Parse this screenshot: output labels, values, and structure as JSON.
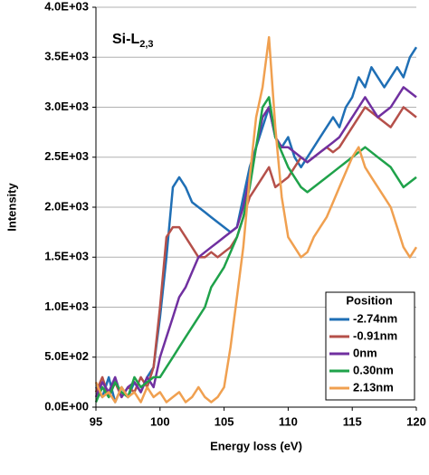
{
  "chart_data": {
    "type": "line",
    "title": "Si-L",
    "title_subscript": "2,3",
    "x_label": "Energy loss (eV)",
    "y_label": "Intensity",
    "x": [
      95,
      95.5,
      96,
      96.5,
      97,
      97.5,
      98,
      98.5,
      99,
      99.5,
      100,
      100.5,
      101,
      101.5,
      102,
      102.5,
      103,
      103.5,
      104,
      104.5,
      105,
      105.5,
      106,
      106.5,
      107,
      107.5,
      108,
      108.5,
      109,
      109.5,
      110,
      110.5,
      111,
      111.5,
      112,
      112.5,
      113,
      113.5,
      114,
      114.5,
      115,
      115.5,
      116,
      116.5,
      117,
      117.5,
      118,
      118.5,
      119,
      119.5,
      120
    ],
    "series": [
      {
        "name": "-2.74nm",
        "color": "#1f6fb5",
        "values": [
          200,
          100,
          300,
          50,
          200,
          100,
          250,
          150,
          300,
          400,
          900,
          1500,
          2200,
          2300,
          2200,
          2050,
          2000,
          1950,
          1900,
          1850,
          1800,
          1750,
          1800,
          2100,
          2400,
          2600,
          2800,
          3000,
          2700,
          2600,
          2700,
          2500,
          2400,
          2500,
          2600,
          2700,
          2800,
          2900,
          2800,
          3000,
          3100,
          3300,
          3200,
          3400,
          3300,
          3200,
          3300,
          3400,
          3300,
          3500,
          3600
        ]
      },
      {
        "name": "-0.91nm",
        "color": "#b5504a",
        "values": [
          150,
          300,
          100,
          250,
          100,
          200,
          150,
          300,
          200,
          400,
          1000,
          1700,
          1800,
          1800,
          1700,
          1600,
          1500,
          1500,
          1550,
          1500,
          1550,
          1600,
          1700,
          1900,
          2100,
          2200,
          2300,
          2400,
          2200,
          2250,
          2300,
          2400,
          2500,
          2450,
          2500,
          2550,
          2600,
          2550,
          2600,
          2700,
          2800,
          2900,
          3000,
          2950,
          2900,
          2850,
          2800,
          2900,
          3000,
          2950,
          2900
        ]
      },
      {
        "name": "0nm",
        "color": "#7030a0",
        "values": [
          100,
          250,
          150,
          300,
          100,
          200,
          250,
          150,
          300,
          200,
          500,
          700,
          900,
          1100,
          1200,
          1350,
          1500,
          1550,
          1600,
          1650,
          1700,
          1750,
          1800,
          2000,
          2300,
          2600,
          2900,
          3000,
          2700,
          2600,
          2600,
          2550,
          2500,
          2450,
          2500,
          2550,
          2600,
          2650,
          2700,
          2800,
          2900,
          3000,
          3100,
          3000,
          2900,
          2950,
          3000,
          3100,
          3200,
          3150,
          3100
        ]
      },
      {
        "name": "0.30nm",
        "color": "#1fa24a",
        "values": [
          50,
          200,
          100,
          250,
          150,
          100,
          300,
          200,
          250,
          300,
          300,
          400,
          500,
          600,
          700,
          800,
          900,
          1000,
          1200,
          1300,
          1400,
          1550,
          1700,
          1900,
          2200,
          2600,
          3000,
          3100,
          2700,
          2550,
          2400,
          2300,
          2200,
          2150,
          2200,
          2250,
          2300,
          2350,
          2400,
          2450,
          2500,
          2550,
          2600,
          2550,
          2500,
          2450,
          2400,
          2300,
          2200,
          2250,
          2300
        ]
      },
      {
        "name": "2.13nm",
        "color": "#f0a050",
        "values": [
          250,
          100,
          150,
          50,
          200,
          100,
          150,
          50,
          200,
          100,
          150,
          50,
          100,
          150,
          50,
          100,
          200,
          100,
          50,
          100,
          200,
          600,
          1100,
          1600,
          2300,
          2900,
          3200,
          3700,
          2800,
          2100,
          1700,
          1600,
          1500,
          1550,
          1700,
          1800,
          1900,
          2050,
          2200,
          2350,
          2500,
          2600,
          2400,
          2300,
          2200,
          2100,
          2000,
          1800,
          1600,
          1500,
          1600
        ]
      }
    ],
    "legend_title": "Position",
    "legend_position": "lower right",
    "xlim": [
      95,
      120
    ],
    "xticks": [
      95,
      100,
      105,
      110,
      115,
      120
    ],
    "ylim": [
      0,
      4000
    ],
    "yticks": [
      {
        "value": 0,
        "label": "0.0E+00"
      },
      {
        "value": 500,
        "label": "5.0E+02"
      },
      {
        "value": 1000,
        "label": "1.0E+03"
      },
      {
        "value": 1500,
        "label": "1.5E+03"
      },
      {
        "value": 2000,
        "label": "2.0E+03"
      },
      {
        "value": 2500,
        "label": "2.5E+03"
      },
      {
        "value": 3000,
        "label": "3.0E+03"
      },
      {
        "value": 3500,
        "label": "3.5E+03"
      },
      {
        "value": 4000,
        "label": "4.0E+03"
      }
    ],
    "grid": true
  }
}
